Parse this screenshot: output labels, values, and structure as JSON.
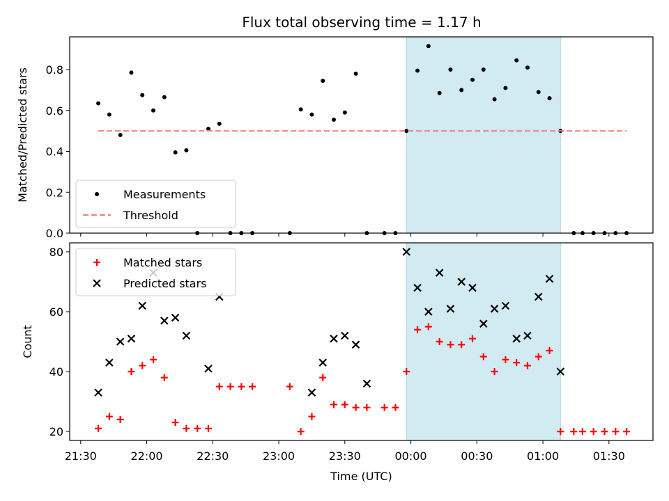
{
  "title": "Flux total observing time = 1.17 h",
  "colors": {
    "measurement": "#000000",
    "threshold": "#f08080",
    "matched": "#ff0000",
    "predicted": "#000000",
    "highlight": "#add8e6"
  },
  "chart_data": [
    {
      "type": "scatter",
      "ylabel": "Matched/Predicted stars",
      "ylim": [
        0,
        0.96
      ],
      "yticks": [
        "0.0",
        "0.2",
        "0.4",
        "0.6",
        "0.8"
      ],
      "xlim": [
        "21:25",
        "01:50"
      ],
      "highlight_range": [
        "23:58",
        "01:08"
      ],
      "legend_position": "lower-left",
      "series": [
        {
          "name": "Measurements",
          "marker": "dot",
          "x": [
            "21:38",
            "21:43",
            "21:48",
            "21:53",
            "21:58",
            "22:03",
            "22:08",
            "22:13",
            "22:18",
            "22:23",
            "22:28",
            "22:33",
            "22:38",
            "22:43",
            "22:48",
            "23:05",
            "23:10",
            "23:15",
            "23:20",
            "23:25",
            "23:30",
            "23:35",
            "23:40",
            "23:48",
            "23:53",
            "23:58",
            "00:03",
            "00:08",
            "00:13",
            "00:18",
            "00:23",
            "00:28",
            "00:33",
            "00:38",
            "00:43",
            "00:48",
            "00:53",
            "00:58",
            "01:03",
            "01:08",
            "01:14",
            "01:18",
            "01:23",
            "01:28",
            "01:33",
            "01:38"
          ],
          "y": [
            0.635,
            0.58,
            0.48,
            0.785,
            0.675,
            0.6,
            0.665,
            0.395,
            0.405,
            0.0,
            0.51,
            0.535,
            0.0,
            0.0,
            0.0,
            0.0,
            0.605,
            0.58,
            0.745,
            0.555,
            0.59,
            0.78,
            0.0,
            0.0,
            0.0,
            0.5,
            0.795,
            0.915,
            0.685,
            0.8,
            0.7,
            0.75,
            0.8,
            0.655,
            0.71,
            0.845,
            0.81,
            0.69,
            0.66,
            0.5,
            0.0,
            0.0,
            0.0,
            0.0,
            0.0,
            0.0
          ]
        },
        {
          "name": "Threshold",
          "marker": "dashed-line",
          "x": [
            "21:38",
            "01:38"
          ],
          "y": [
            0.5,
            0.5
          ]
        }
      ]
    },
    {
      "type": "scatter",
      "xlabel": "Time (UTC)",
      "ylabel": "Count",
      "ylim": [
        17,
        83
      ],
      "yticks": [
        "20",
        "40",
        "60",
        "80"
      ],
      "xlim": [
        "21:25",
        "01:50"
      ],
      "xticks": [
        "21:30",
        "22:00",
        "22:30",
        "23:00",
        "23:30",
        "00:00",
        "00:30",
        "01:00",
        "01:30"
      ],
      "highlight_range": [
        "23:58",
        "01:08"
      ],
      "legend_position": "upper-left",
      "series": [
        {
          "name": "Matched stars",
          "marker": "plus",
          "x": [
            "21:38",
            "21:43",
            "21:48",
            "21:53",
            "21:58",
            "22:03",
            "22:08",
            "22:13",
            "22:18",
            "22:23",
            "22:28",
            "22:33",
            "22:38",
            "22:43",
            "22:48",
            "23:05",
            "23:10",
            "23:15",
            "23:20",
            "23:25",
            "23:30",
            "23:35",
            "23:40",
            "23:48",
            "23:53",
            "23:58",
            "00:03",
            "00:08",
            "00:13",
            "00:18",
            "00:23",
            "00:28",
            "00:33",
            "00:38",
            "00:43",
            "00:48",
            "00:53",
            "00:58",
            "01:03",
            "01:08",
            "01:14",
            "01:18",
            "01:23",
            "01:28",
            "01:33",
            "01:38"
          ],
          "y": [
            21,
            25,
            24,
            40,
            42,
            44,
            38,
            23,
            21,
            21,
            21,
            35,
            35,
            35,
            35,
            35,
            20,
            25,
            38,
            29,
            29,
            28,
            28,
            28,
            28,
            40,
            54,
            55,
            50,
            49,
            49,
            51,
            45,
            40,
            44,
            43,
            42,
            45,
            47,
            20,
            20,
            20,
            20,
            20,
            20,
            20
          ]
        },
        {
          "name": "Predicted stars",
          "marker": "x",
          "x": [
            "21:38",
            "21:43",
            "21:48",
            "21:53",
            "21:58",
            "22:03",
            "22:08",
            "22:13",
            "22:18",
            "22:28",
            "22:33",
            "23:15",
            "23:20",
            "23:25",
            "23:30",
            "23:35",
            "23:40",
            "23:58",
            "00:03",
            "00:08",
            "00:13",
            "00:18",
            "00:23",
            "00:28",
            "00:33",
            "00:38",
            "00:43",
            "00:48",
            "00:53",
            "00:58",
            "01:03",
            "01:08"
          ],
          "y": [
            33,
            43,
            50,
            51,
            62,
            73,
            57,
            58,
            52,
            41,
            65,
            33,
            43,
            51,
            52,
            49,
            36,
            80,
            68,
            60,
            73,
            61,
            70,
            68,
            56,
            61,
            62,
            51,
            52,
            65,
            71,
            40
          ]
        }
      ]
    }
  ]
}
